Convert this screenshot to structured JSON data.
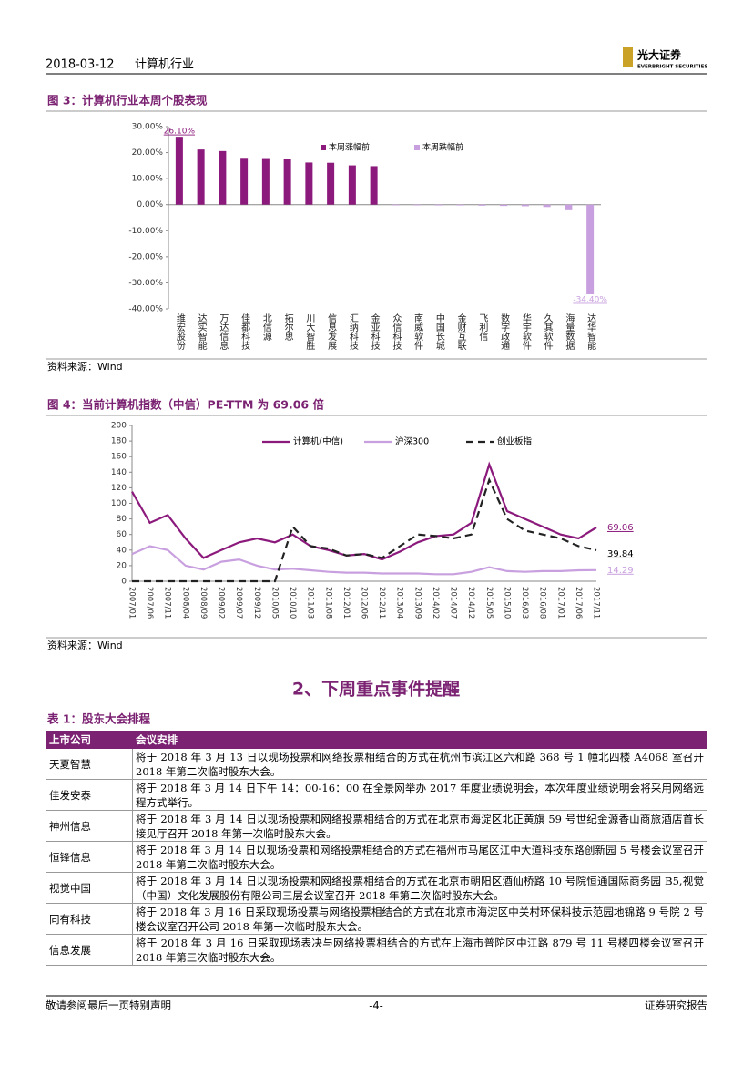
{
  "header": {
    "date": "2018-03-12",
    "industry": "计算机行业",
    "logo_cn": "光大证券",
    "logo_en": "EVERBRIGHT SECURITIES"
  },
  "chart_data": [
    {
      "type": "bar",
      "title": "图 3：计算机行业本周个股表现",
      "source": "资料来源：Wind",
      "categories": [
        "维宏股份",
        "达实智能",
        "万达信息",
        "佳都科技",
        "北信源",
        "拓尔思",
        "川大智胜",
        "信息发展",
        "汇纳科技",
        "金亚科技",
        "众信科技",
        "南威软件",
        "中国长城",
        "金财互联",
        "飞利信",
        "数字政通",
        "华宇软件",
        "久其软件",
        "海量数据",
        "达华智能"
      ],
      "series": [
        {
          "name": "本周涨幅前",
          "color": "#8b1a7c",
          "values": [
            26.1,
            21.2,
            20.6,
            18.0,
            17.9,
            17.4,
            16.2,
            16.1,
            15.1,
            14.8,
            null,
            null,
            null,
            null,
            null,
            null,
            null,
            null,
            null,
            null
          ],
          "value_labels": [
            "26.10%",
            null,
            null,
            null,
            null,
            null,
            null,
            null,
            null,
            null,
            null,
            null,
            null,
            null,
            null,
            null,
            null,
            null,
            null,
            null
          ]
        },
        {
          "name": "本周跌幅前",
          "color": "#c9a0df",
          "values": [
            null,
            null,
            null,
            null,
            null,
            null,
            null,
            null,
            null,
            null,
            -0.1,
            -0.2,
            -0.3,
            -0.3,
            -0.4,
            -0.5,
            -0.6,
            -0.9,
            -1.8,
            -34.4
          ],
          "value_labels": [
            null,
            null,
            null,
            null,
            null,
            null,
            null,
            null,
            null,
            null,
            null,
            null,
            null,
            null,
            null,
            null,
            null,
            null,
            null,
            "-34.40%"
          ]
        }
      ],
      "ylim": [
        -40,
        30
      ],
      "yticks": [
        {
          "value": 30,
          "label": "30.00%"
        },
        {
          "value": 20,
          "label": "20.00%"
        },
        {
          "value": 10,
          "label": "10.00%"
        },
        {
          "value": 0,
          "label": "0.00%"
        },
        {
          "value": -10,
          "label": "-10.00%"
        },
        {
          "value": -20,
          "label": "-20.00%"
        },
        {
          "value": -30,
          "label": "-30.00%"
        },
        {
          "value": -40,
          "label": "-40.00%"
        }
      ],
      "grid": false
    },
    {
      "type": "line",
      "title": "图 4：当前计算机指数（中信）PE-TTM 为 69.06 倍",
      "source": "资料来源：Wind",
      "categories": [
        "2007/01",
        "2007/06",
        "2007/11",
        "2008/04",
        "2008/09",
        "2009/02",
        "2009/07",
        "2009/12",
        "2010/05",
        "2010/10",
        "2011/03",
        "2011/08",
        "2012/01",
        "2012/06",
        "2012/11",
        "2013/04",
        "2013/09",
        "2014/02",
        "2014/07",
        "2014/12",
        "2015/05",
        "2015/10",
        "2016/03",
        "2016/08",
        "2017/01",
        "2017/06",
        "2017/11"
      ],
      "series": [
        {
          "name": "计算机(中信)",
          "color": "#8b1a7c",
          "dash": false,
          "values": [
            115,
            75,
            85,
            55,
            30,
            40,
            50,
            55,
            50,
            60,
            45,
            40,
            33,
            35,
            28,
            38,
            50,
            58,
            60,
            75,
            150,
            90,
            80,
            70,
            60,
            55,
            69.06
          ]
        },
        {
          "name": "沪深300",
          "color": "#c9a0df",
          "dash": false,
          "values": [
            35,
            45,
            40,
            20,
            15,
            25,
            28,
            20,
            15,
            16,
            14,
            12,
            11,
            11,
            10,
            10,
            10,
            9,
            9,
            12,
            18,
            13,
            12,
            13,
            13,
            14,
            14.29
          ]
        },
        {
          "name": "创业板指",
          "color": "#222222",
          "dash": true,
          "values": [
            0,
            0,
            0,
            0,
            0,
            0,
            0,
            0,
            0,
            70,
            45,
            42,
            33,
            35,
            30,
            45,
            60,
            58,
            55,
            60,
            130,
            80,
            65,
            60,
            55,
            45,
            39.84
          ]
        }
      ],
      "ylim": [
        0,
        200
      ],
      "yticks": [
        0,
        20,
        40,
        60,
        80,
        100,
        120,
        140,
        160,
        180,
        200
      ],
      "grid": false
    }
  ],
  "section": {
    "heading": "2、下周重点事件提醒"
  },
  "table": {
    "title": "表 1：股东大会排程",
    "columns": [
      "上市公司",
      "会议安排"
    ],
    "rows": [
      [
        "天夏智慧",
        "将于 2018 年 3 月 13 日以现场投票和网络投票相结合的方式在杭州市滨江区六和路 368 号 1 幢北四楼 A4068 室召开 2018 年第二次临时股东大会。"
      ],
      [
        "佳发安泰",
        "将于 2018 年 3 月 14 日下午 14：00-16：00 在全景网举办 2017 年度业绩说明会，本次年度业绩说明会将采用网络远程方式举行。"
      ],
      [
        "神州信息",
        "将于 2018 年 3 月 14 日以现场投票和网络投票相结合的方式在北京市海淀区北正黄旗 59 号世纪金源香山商旅酒店首长接见厅召开 2018 年第一次临时股东大会。"
      ],
      [
        "恒锋信息",
        "将于 2018 年 3 月 14 日以现场投票和网络投票相结合的方式在福州市马尾区江中大道科技东路创新园 5 号楼会议室召开 2018 年第二次临时股东大会。"
      ],
      [
        "视觉中国",
        "将于 2018 年 3 月 14 日以现场投票和网络投票相结合的方式在北京市朝阳区酒仙桥路 10 号院恒通国际商务园 B5,视觉（中国）文化发展股份有限公司三层会议室召开 2018 年第二次临时股东大会。"
      ],
      [
        "同有科技",
        "将于 2018 年 3 月 16 日采取现场投票与网络投票相结合的方式在北京市海淀区中关村环保科技示范园地锦路 9 号院 2 号楼会议室召开公司 2018 年第一次临时股东大会。"
      ],
      [
        "信息发展",
        "将于 2018 年 3 月 16 日采取现场表决与网络投票相结合的方式在上海市普陀区中江路 879 号 11 号楼四楼会议室召开 2018 年第三次临时股东大会。"
      ]
    ]
  },
  "footer": {
    "disclaimer": "敬请参阅最后一页特别声明",
    "page": "-4-",
    "report_type": "证券研究报告"
  }
}
